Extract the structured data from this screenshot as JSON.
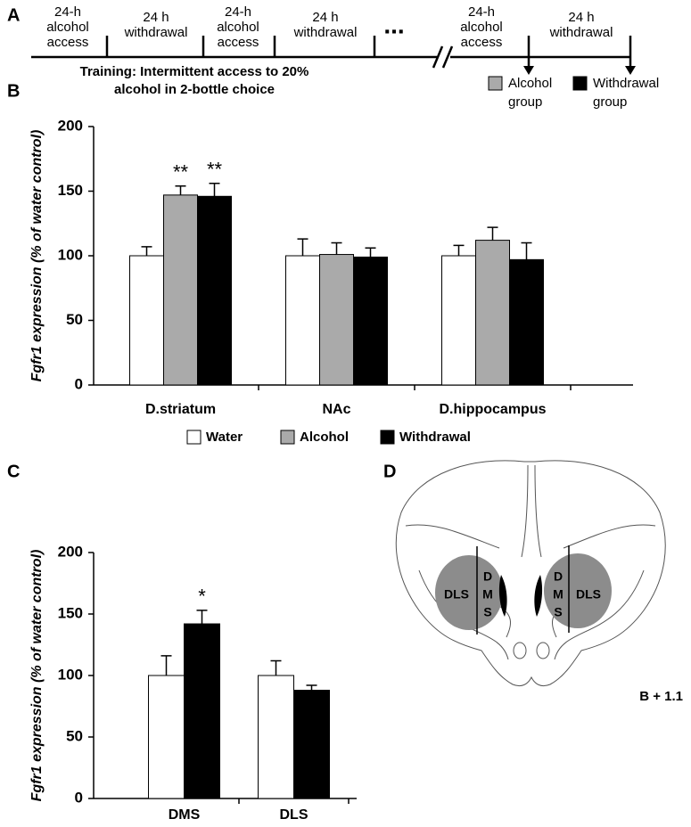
{
  "panel_a": {
    "label": "A",
    "segments": [
      [
        "24-h",
        "alcohol",
        "access"
      ],
      [
        "24 h",
        "withdrawal"
      ],
      [
        "24-h",
        "alcohol",
        "access"
      ],
      [
        "24 h",
        "withdrawal"
      ],
      [
        "24-h",
        "alcohol",
        "access"
      ],
      [
        "24 h",
        "withdrawal"
      ]
    ],
    "ellipsis": "...",
    "training": [
      "Training: Intermittent access to 20%",
      "alcohol in 2-bottle choice"
    ],
    "legend": [
      {
        "lines": [
          "Alcohol",
          "group"
        ],
        "color": "#aaaaaa"
      },
      {
        "lines": [
          "Withdrawal",
          "group"
        ],
        "color": "#000000"
      }
    ]
  },
  "chart_data": [
    {
      "panel_label": "B",
      "type": "bar",
      "ylabel": "Fgfr1 expression (% of water control)",
      "categories": [
        "D.striatum",
        "NAc",
        "D.hippocampus"
      ],
      "series": [
        {
          "name": "Water",
          "color": "#ffffff",
          "values": [
            100,
            100,
            100
          ],
          "errors": [
            7,
            13,
            8
          ]
        },
        {
          "name": "Alcohol",
          "color": "#aaaaaa",
          "values": [
            147,
            101,
            112
          ],
          "errors": [
            7,
            9,
            10
          ]
        },
        {
          "name": "Withdrawal",
          "color": "#000000",
          "values": [
            146,
            99,
            97
          ],
          "errors": [
            10,
            7,
            13
          ]
        }
      ],
      "ylim": [
        0,
        200
      ],
      "yticks": [
        0,
        50,
        100,
        150,
        200
      ],
      "annotations": [
        {
          "text": "**",
          "series": 1,
          "index": 0
        },
        {
          "text": "**",
          "series": 2,
          "index": 0
        }
      ]
    },
    {
      "panel_label": "C",
      "type": "bar",
      "ylabel": "Fgfr1 expression (% of water control)",
      "categories": [
        "DMS",
        "DLS"
      ],
      "series": [
        {
          "color": "#ffffff",
          "values": [
            100,
            100
          ],
          "errors": [
            16,
            12
          ]
        },
        {
          "color": "#000000",
          "values": [
            142,
            88
          ],
          "errors": [
            11,
            4
          ]
        }
      ],
      "ylim": [
        0,
        200
      ],
      "yticks": [
        0,
        50,
        100,
        150,
        200
      ],
      "annotations": [
        {
          "text": "*",
          "series": 1,
          "index": 0
        }
      ]
    }
  ],
  "panel_d": {
    "label": "D",
    "left_dls": "DLS",
    "left_dms": [
      "D",
      "M",
      "S"
    ],
    "right_dms": [
      "D",
      "M",
      "S"
    ],
    "right_dls": "DLS",
    "bregma": "B + 1.1"
  }
}
